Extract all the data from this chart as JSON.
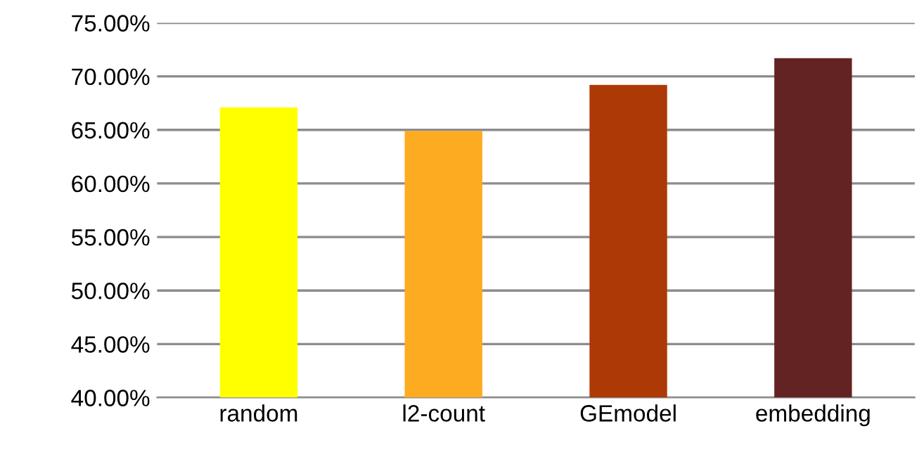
{
  "chart_data": {
    "type": "bar",
    "categories": [
      "random",
      "l2-count",
      "GEmodel",
      "embedding"
    ],
    "values": [
      67.1,
      64.9,
      69.2,
      71.7
    ],
    "colors": [
      "#ffff00",
      "#fdab20",
      "#ad3a06",
      "#632322"
    ],
    "ylim": [
      40,
      75
    ],
    "yticks": [
      {
        "value": 40,
        "label": "40.00%"
      },
      {
        "value": 45,
        "label": "45.00%"
      },
      {
        "value": 50,
        "label": "50.00%"
      },
      {
        "value": 55,
        "label": "55.00%"
      },
      {
        "value": 60,
        "label": "60.00%"
      },
      {
        "value": 65,
        "label": "65.00%"
      },
      {
        "value": 70,
        "label": "70.00%"
      },
      {
        "value": 75,
        "label": "75.00%"
      }
    ],
    "grid": "y"
  }
}
